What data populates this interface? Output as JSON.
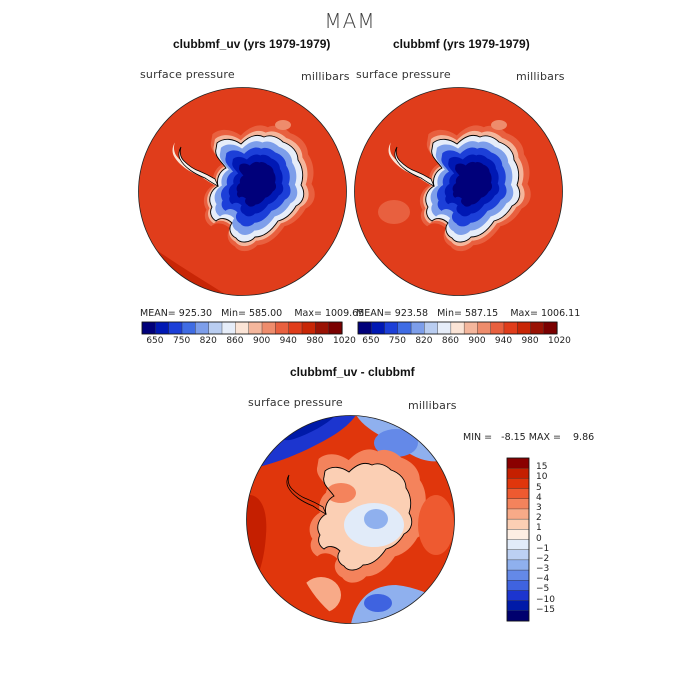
{
  "season": "MAM",
  "panel_left": {
    "title": "clubbmf_uv (yrs 1979-1979)",
    "field_label": "surface pressure",
    "units_label": "millibars",
    "stats": {
      "mean": "925.30",
      "min": "585.00",
      "max": "1009.65"
    }
  },
  "panel_right": {
    "title": "clubbmf (yrs 1979-1979)",
    "field_label": "surface pressure",
    "units_label": "millibars",
    "stats": {
      "mean": "923.58",
      "min": "587.15",
      "max": "1006.11"
    }
  },
  "panel_diff": {
    "title": "clubbmf_uv - clubbmf",
    "field_label": "surface pressure",
    "units_label": "millibars",
    "min_max_text": "MIN =   -8.15 MAX =    9.86"
  },
  "labels": {
    "mean_prefix": "MEAN=",
    "min_prefix": "Min=",
    "max_prefix": "Max="
  },
  "abs_colorbar": {
    "tick_labels": [
      "650",
      "750",
      "820",
      "860",
      "900",
      "940",
      "980",
      "1020"
    ],
    "colors": [
      "#00007a",
      "#0018b4",
      "#1c3fd8",
      "#3f6ce4",
      "#7d9eea",
      "#b9cdf1",
      "#e6edf9",
      "#fbe4d6",
      "#f4b69c",
      "#ee8c6c",
      "#e8603f",
      "#e03d1b",
      "#c82606",
      "#9a1204",
      "#7a0000"
    ]
  },
  "diff_colorbar": {
    "labels_top_to_bottom": [
      "15",
      "10",
      "5",
      "4",
      "3",
      "2",
      "1",
      "0",
      "−1",
      "−2",
      "−3",
      "−4",
      "−5",
      "−10",
      "−15"
    ],
    "colors_top_to_bottom": [
      "#8a0000",
      "#c51f00",
      "#e0360c",
      "#ee5a30",
      "#f4835c",
      "#f8aa88",
      "#fbcfb4",
      "#fdeee3",
      "#e1ebf9",
      "#bcd0f3",
      "#8fb0ee",
      "#6489e8",
      "#3f63e0",
      "#1c35cf",
      "#001aa8",
      "#00006e"
    ]
  },
  "colors": {
    "ocean": "#e03d1b",
    "ocean_dark": "#c82606",
    "ice_deep": "#00007a",
    "coast": "#000000"
  }
}
